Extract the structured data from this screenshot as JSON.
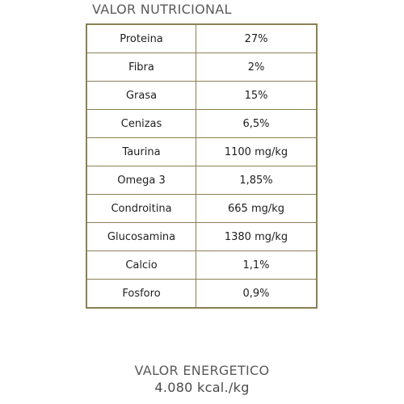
{
  "title": "VALOR NUTRICIONAL",
  "table": {
    "rows": [
      {
        "name": "Proteina",
        "value": "27%"
      },
      {
        "name": "Fibra",
        "value": "2%"
      },
      {
        "name": "Grasa",
        "value": "15%"
      },
      {
        "name": "Cenizas",
        "value": "6,5%"
      },
      {
        "name": "Taurina",
        "value": "1100 mg/kg"
      },
      {
        "name": "Omega 3",
        "value": "1,85%"
      },
      {
        "name": "Condroitina",
        "value": "665 mg/kg"
      },
      {
        "name": "Glucosamina",
        "value": "1380 mg/kg"
      },
      {
        "name": "Calcio",
        "value": "1,1%"
      },
      {
        "name": "Fosforo",
        "value": "0,9%"
      }
    ]
  },
  "energy": {
    "label": "VALOR ENERGETICO",
    "value": "4.080 kcal./kg"
  },
  "colors": {
    "border": "#8b7f55",
    "heading_text": "#5a5a5a"
  }
}
